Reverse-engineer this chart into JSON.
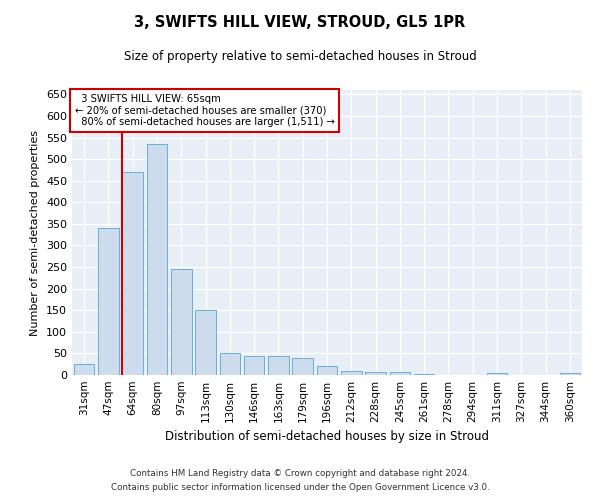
{
  "title": "3, SWIFTS HILL VIEW, STROUD, GL5 1PR",
  "subtitle": "Size of property relative to semi-detached houses in Stroud",
  "xlabel": "Distribution of semi-detached houses by size in Stroud",
  "ylabel": "Number of semi-detached properties",
  "property_label": "3 SWIFTS HILL VIEW: 65sqm",
  "smaller_pct": "20%",
  "smaller_count": 370,
  "larger_pct": "80%",
  "larger_count": 1511,
  "bar_color": "#ccdcec",
  "bar_edge_color": "#6aaed6",
  "vline_color": "#cc0000",
  "annotation_box_color": "#cc0000",
  "background_color": "#e8eef5",
  "grid_color": "#ffffff",
  "fig_background": "#ffffff",
  "categories": [
    "31sqm",
    "47sqm",
    "64sqm",
    "80sqm",
    "97sqm",
    "113sqm",
    "130sqm",
    "146sqm",
    "163sqm",
    "179sqm",
    "196sqm",
    "212sqm",
    "228sqm",
    "245sqm",
    "261sqm",
    "278sqm",
    "294sqm",
    "311sqm",
    "327sqm",
    "344sqm",
    "360sqm"
  ],
  "values": [
    25,
    340,
    470,
    535,
    245,
    150,
    50,
    45,
    45,
    40,
    20,
    10,
    8,
    6,
    2,
    1,
    1,
    4,
    1,
    1,
    4
  ],
  "vline_index": 2,
  "ylim": [
    0,
    660
  ],
  "yticks": [
    0,
    50,
    100,
    150,
    200,
    250,
    300,
    350,
    400,
    450,
    500,
    550,
    600,
    650
  ],
  "footer1": "Contains HM Land Registry data © Crown copyright and database right 2024.",
  "footer2": "Contains public sector information licensed under the Open Government Licence v3.0."
}
